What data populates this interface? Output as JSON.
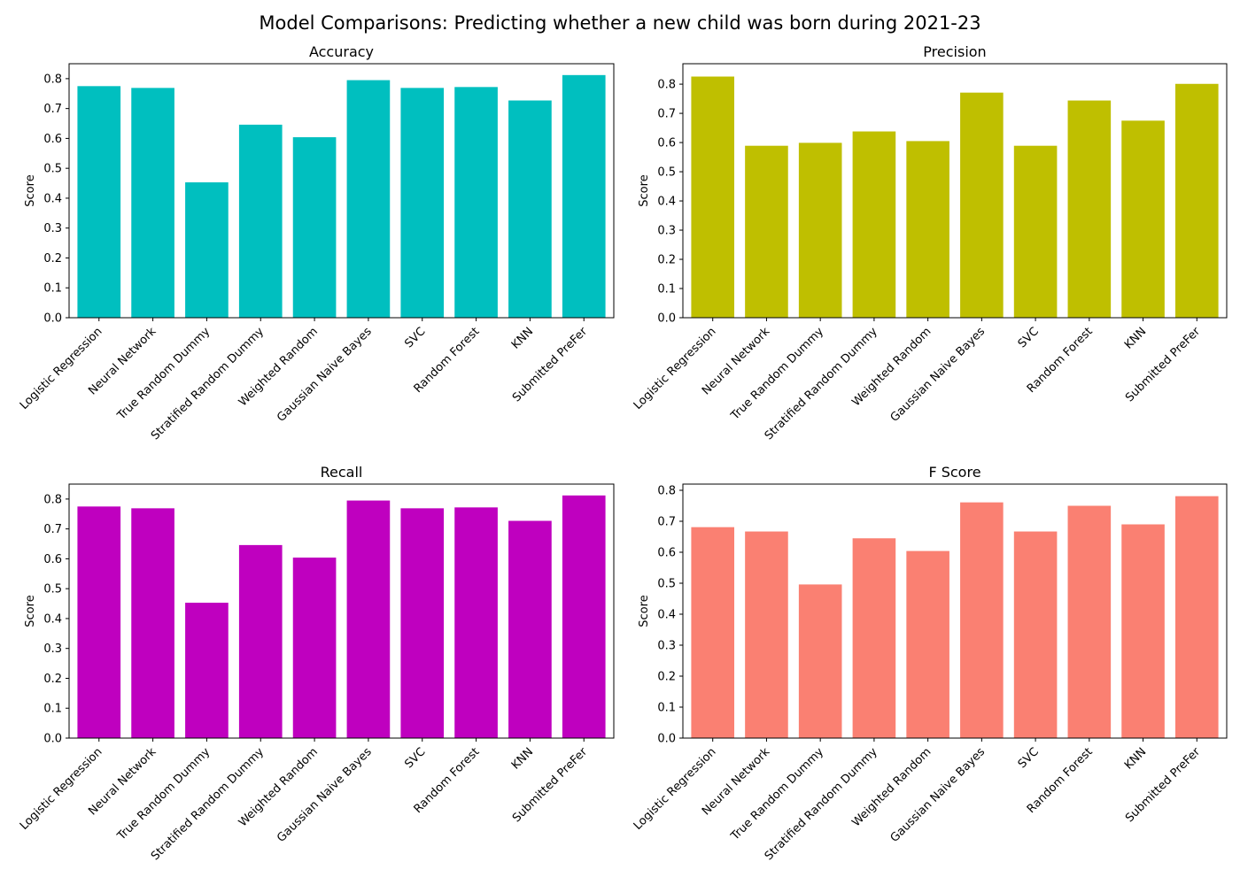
{
  "suptitle": "Model Comparisons: Predicting whether a new child was born during 2021-23",
  "chart_data": [
    {
      "type": "bar",
      "title": "Accuracy",
      "xlabel": "",
      "ylabel": "Score",
      "color": "#00bfbf",
      "ylim": [
        0,
        0.85
      ],
      "yticks": [
        0.0,
        0.1,
        0.2,
        0.3,
        0.4,
        0.5,
        0.6,
        0.7,
        0.8
      ],
      "categories": [
        "Logistic Regression",
        "Neural Network",
        "True Random Dummy",
        "Stratified Random Dummy",
        "Weighted Random",
        "Gaussian Naive Bayes",
        "SVC",
        "Random Forest",
        "KNN",
        "Submitted PreFer"
      ],
      "values": [
        0.775,
        0.769,
        0.453,
        0.646,
        0.604,
        0.795,
        0.769,
        0.772,
        0.727,
        0.812
      ]
    },
    {
      "type": "bar",
      "title": "Precision",
      "xlabel": "",
      "ylabel": "Score",
      "color": "#bfbf00",
      "ylim": [
        0,
        0.87
      ],
      "yticks": [
        0.0,
        0.1,
        0.2,
        0.3,
        0.4,
        0.5,
        0.6,
        0.7,
        0.8
      ],
      "categories": [
        "Logistic Regression",
        "Neural Network",
        "True Random Dummy",
        "Stratified Random Dummy",
        "Weighted Random",
        "Gaussian Naive Bayes",
        "SVC",
        "Random Forest",
        "KNN",
        "Submitted PreFer"
      ],
      "values": [
        0.826,
        0.589,
        0.599,
        0.638,
        0.605,
        0.771,
        0.589,
        0.744,
        0.675,
        0.801
      ]
    },
    {
      "type": "bar",
      "title": "Recall",
      "xlabel": "",
      "ylabel": "Score",
      "color": "#bf00bf",
      "ylim": [
        0,
        0.85
      ],
      "yticks": [
        0.0,
        0.1,
        0.2,
        0.3,
        0.4,
        0.5,
        0.6,
        0.7,
        0.8
      ],
      "categories": [
        "Logistic Regression",
        "Neural Network",
        "True Random Dummy",
        "Stratified Random Dummy",
        "Weighted Random",
        "Gaussian Naive Bayes",
        "SVC",
        "Random Forest",
        "KNN",
        "Submitted PreFer"
      ],
      "values": [
        0.775,
        0.769,
        0.453,
        0.646,
        0.604,
        0.795,
        0.769,
        0.772,
        0.727,
        0.812
      ]
    },
    {
      "type": "bar",
      "title": "F Score",
      "xlabel": "",
      "ylabel": "Score",
      "color": "#fa8072",
      "ylim": [
        0,
        0.82
      ],
      "yticks": [
        0.0,
        0.1,
        0.2,
        0.3,
        0.4,
        0.5,
        0.6,
        0.7,
        0.8
      ],
      "categories": [
        "Logistic Regression",
        "Neural Network",
        "True Random Dummy",
        "Stratified Random Dummy",
        "Weighted Random",
        "Gaussian Naive Bayes",
        "SVC",
        "Random Forest",
        "KNN",
        "Submitted PreFer"
      ],
      "values": [
        0.681,
        0.667,
        0.496,
        0.645,
        0.604,
        0.761,
        0.667,
        0.75,
        0.69,
        0.781
      ]
    }
  ]
}
